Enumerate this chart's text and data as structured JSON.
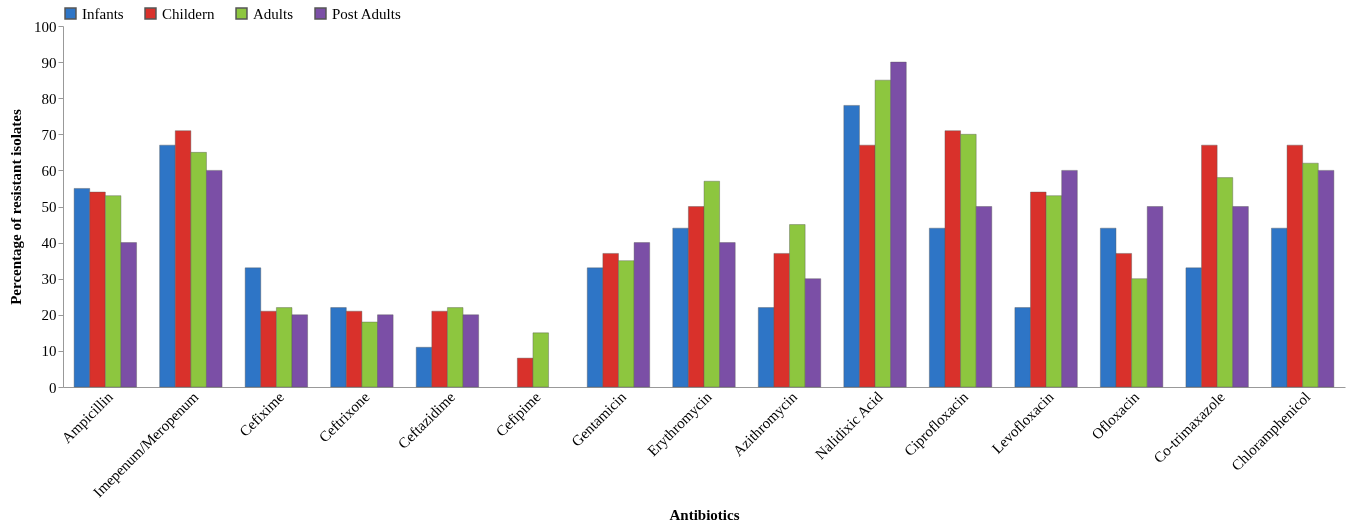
{
  "chart_data": {
    "type": "bar",
    "xlabel": "Antibiotics",
    "ylabel": "Percentage of resistant isolates",
    "categories": [
      "Ampicillin",
      "Imepenum/Meropenum",
      "Cefixime",
      "Ceftrixone",
      "Ceftazidime",
      "Cefipime",
      "Gentamicin",
      "Erythromycin",
      "Azithromycin",
      "Nalidixic Acid",
      "Ciprofloxacin",
      "Levofloxacin",
      "Ofloxacin",
      "Co-trimaxazole",
      "Chloramphenicol"
    ],
    "series": [
      {
        "name": "Infants",
        "color": "#2e75c6",
        "values": [
          55,
          67,
          33,
          22,
          11,
          null,
          33,
          44,
          22,
          78,
          44,
          22,
          44,
          33,
          44
        ]
      },
      {
        "name": "Childern",
        "color": "#d9312b",
        "values": [
          54,
          71,
          21,
          21,
          21,
          8,
          37,
          50,
          37,
          67,
          71,
          54,
          37,
          67,
          67
        ]
      },
      {
        "name": "Adults",
        "color": "#8dc63f",
        "values": [
          53,
          65,
          22,
          18,
          22,
          15,
          35,
          57,
          45,
          85,
          70,
          53,
          30,
          58,
          62
        ]
      },
      {
        "name": "Post Adults",
        "color": "#7b4fa6",
        "values": [
          40,
          60,
          20,
          20,
          20,
          null,
          40,
          40,
          30,
          90,
          50,
          60,
          50,
          50,
          60
        ]
      }
    ],
    "ylim": [
      0,
      100
    ],
    "yticks": [
      0,
      10,
      20,
      30,
      40,
      50,
      60,
      70,
      80,
      90,
      100
    ],
    "legend": "top",
    "grid": false
  }
}
